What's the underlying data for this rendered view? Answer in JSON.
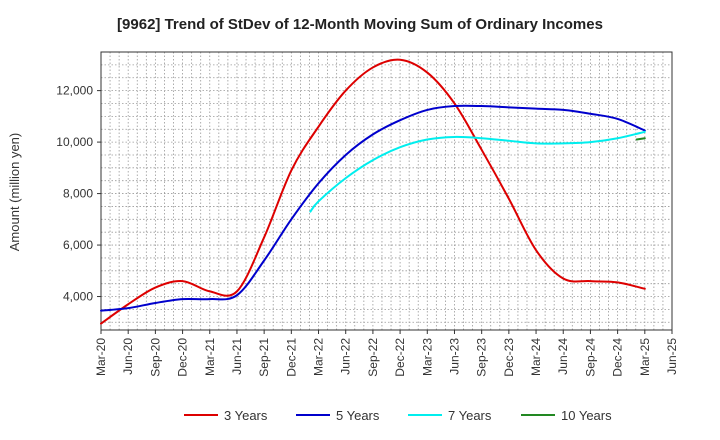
{
  "chart_data": {
    "type": "line",
    "title": "[9962]  Trend of StDev of 12-Month Moving Sum of Ordinary Incomes",
    "xlabel": "",
    "ylabel": "Amount (million yen)",
    "x_ticks": [
      "Mar-20",
      "Jun-20",
      "Sep-20",
      "Dec-20",
      "Mar-21",
      "Jun-21",
      "Sep-21",
      "Dec-21",
      "Mar-22",
      "Jun-22",
      "Sep-22",
      "Dec-22",
      "Mar-23",
      "Jun-23",
      "Sep-23",
      "Dec-23",
      "Mar-24",
      "Jun-24",
      "Sep-24",
      "Dec-24",
      "Mar-25",
      "Jun-25"
    ],
    "y_ticks": [
      4000,
      6000,
      8000,
      10000,
      12000
    ],
    "y_tick_labels": [
      "4,000",
      "6,000",
      "8,000",
      "10,000",
      "12,000"
    ],
    "ylim": [
      2700,
      13500
    ],
    "grid": true,
    "legend_position": "bottom",
    "series": [
      {
        "name": "3 Years",
        "color": "#dd0000",
        "points": [
          {
            "x": 0,
            "y": 2950
          },
          {
            "x": 1,
            "y": 3700
          },
          {
            "x": 2,
            "y": 4350
          },
          {
            "x": 3,
            "y": 4600
          },
          {
            "x": 4,
            "y": 4200
          },
          {
            "x": 5,
            "y": 4200
          },
          {
            "x": 6,
            "y": 6300
          },
          {
            "x": 7,
            "y": 8900
          },
          {
            "x": 8,
            "y": 10600
          },
          {
            "x": 9,
            "y": 12000
          },
          {
            "x": 10,
            "y": 12900
          },
          {
            "x": 11,
            "y": 13200
          },
          {
            "x": 12,
            "y": 12700
          },
          {
            "x": 13,
            "y": 11500
          },
          {
            "x": 14,
            "y": 9700
          },
          {
            "x": 15,
            "y": 7800
          },
          {
            "x": 16,
            "y": 5800
          },
          {
            "x": 17,
            "y": 4700
          },
          {
            "x": 18,
            "y": 4600
          },
          {
            "x": 19,
            "y": 4550
          },
          {
            "x": 20,
            "y": 4300
          }
        ]
      },
      {
        "name": "5 Years",
        "color": "#0000cc",
        "points": [
          {
            "x": 0,
            "y": 3450
          },
          {
            "x": 1,
            "y": 3550
          },
          {
            "x": 2,
            "y": 3750
          },
          {
            "x": 3,
            "y": 3900
          },
          {
            "x": 4,
            "y": 3900
          },
          {
            "x": 5,
            "y": 4050
          },
          {
            "x": 6,
            "y": 5400
          },
          {
            "x": 7,
            "y": 7000
          },
          {
            "x": 8,
            "y": 8400
          },
          {
            "x": 9,
            "y": 9500
          },
          {
            "x": 10,
            "y": 10300
          },
          {
            "x": 11,
            "y": 10850
          },
          {
            "x": 12,
            "y": 11250
          },
          {
            "x": 13,
            "y": 11400
          },
          {
            "x": 14,
            "y": 11400
          },
          {
            "x": 15,
            "y": 11350
          },
          {
            "x": 16,
            "y": 11300
          },
          {
            "x": 17,
            "y": 11250
          },
          {
            "x": 18,
            "y": 11100
          },
          {
            "x": 19,
            "y": 10900
          },
          {
            "x": 20,
            "y": 10450
          }
        ]
      },
      {
        "name": "7 Years",
        "color": "#00eeee",
        "points": [
          {
            "x": 7.7,
            "y": 7300
          },
          {
            "x": 8,
            "y": 7700
          },
          {
            "x": 9,
            "y": 8600
          },
          {
            "x": 10,
            "y": 9300
          },
          {
            "x": 11,
            "y": 9800
          },
          {
            "x": 12,
            "y": 10100
          },
          {
            "x": 13,
            "y": 10200
          },
          {
            "x": 14,
            "y": 10150
          },
          {
            "x": 15,
            "y": 10050
          },
          {
            "x": 16,
            "y": 9950
          },
          {
            "x": 17,
            "y": 9950
          },
          {
            "x": 18,
            "y": 10000
          },
          {
            "x": 19,
            "y": 10150
          },
          {
            "x": 20,
            "y": 10400
          }
        ]
      },
      {
        "name": "10 Years",
        "color": "#228822",
        "points": [
          {
            "x": 19.7,
            "y": 10100
          },
          {
            "x": 20,
            "y": 10150
          }
        ]
      }
    ]
  }
}
